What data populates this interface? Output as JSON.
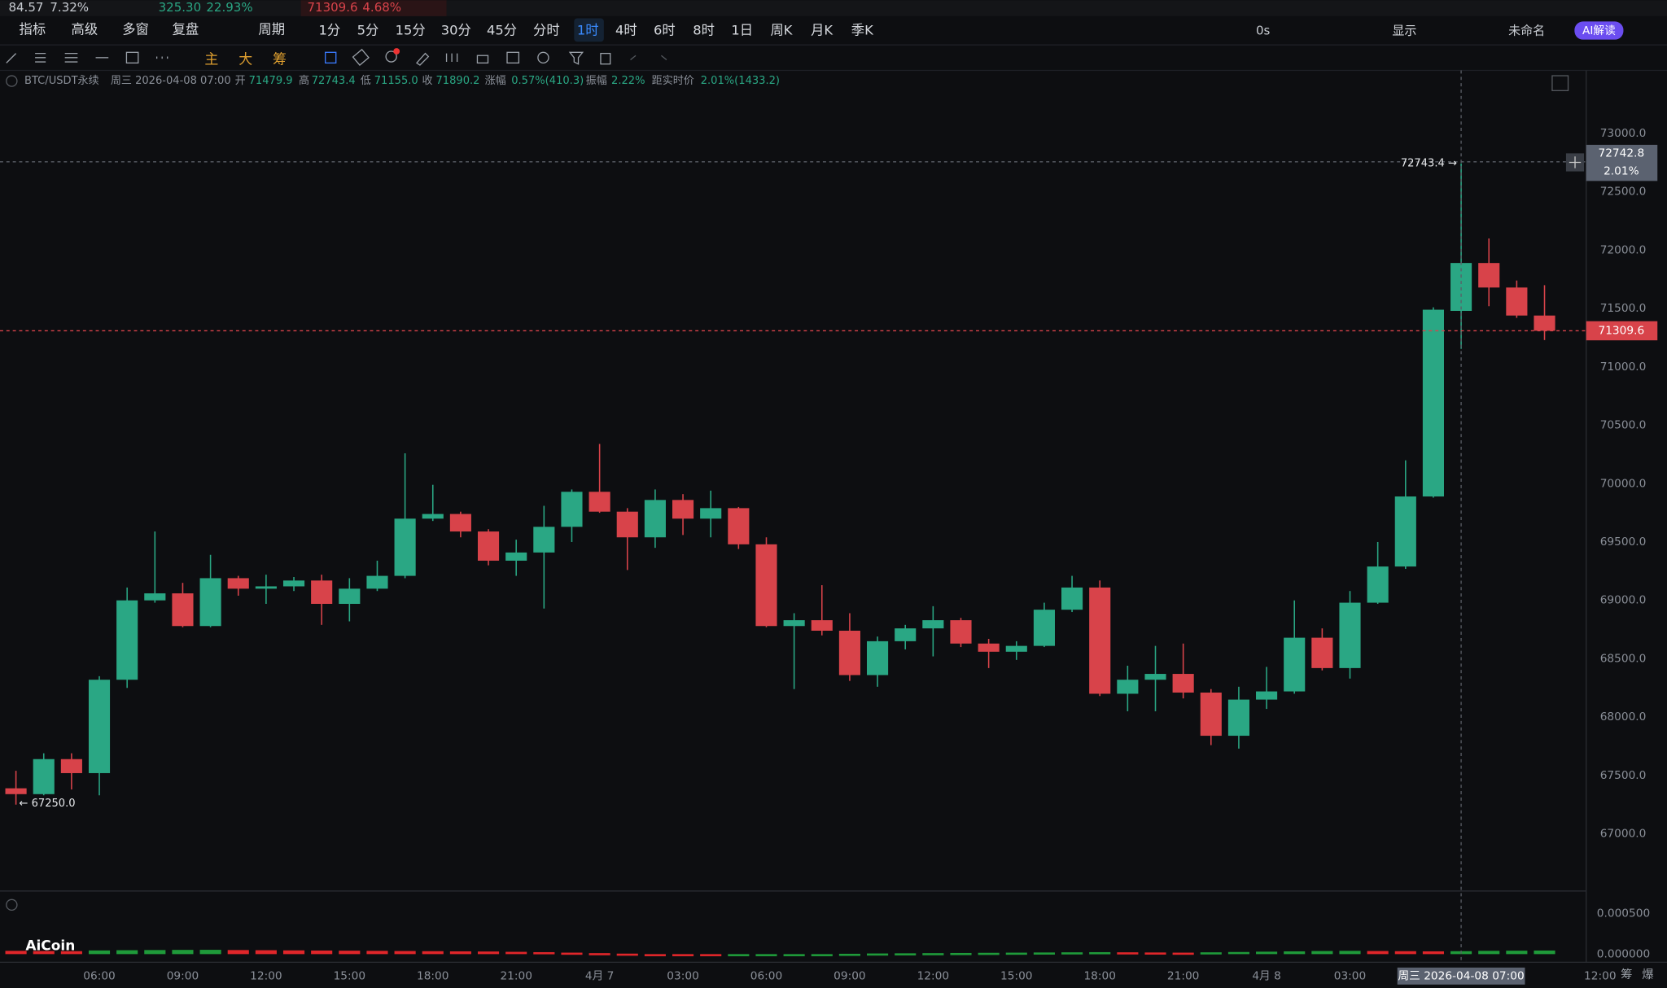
{
  "ui": {
    "tickers": [
      "84.57",
      "7.32%",
      "325.30",
      "22.93%",
      "71309.6",
      "4.68%"
    ],
    "toolbar_left": [
      "指标",
      "高级",
      "多窗",
      "复盘",
      "周期"
    ],
    "periods": [
      "1分",
      "5分",
      "15分",
      "30分",
      "45分",
      "分时",
      "1时",
      "4时",
      "6时",
      "8时",
      "1日",
      "周K",
      "月K",
      "季K"
    ],
    "active_period": "1时",
    "toolbar_right": [
      "0s",
      "显示",
      "未命名",
      "AI解读"
    ],
    "overlays": [
      "主",
      "大",
      "筹"
    ],
    "info": [
      "BTC/USDT永续",
      "周三 2026-04-08 07:00",
      "开",
      "71479.9",
      "高",
      "72743.4",
      "低",
      "71155.0",
      "收",
      "71890.2",
      "涨幅",
      "0.57%(410.3)",
      "振幅",
      "2.22%",
      "距实时价",
      "2.01%(1433.2)"
    ],
    "high_marker": "72743.4 →",
    "low_marker": "← 67250.0",
    "crosshair_price": "72742.8",
    "crosshair_pct": "2.01%",
    "crosshair_time": "周三 2026-04-08 07:00",
    "last_price": "71309.6",
    "logo": "AiCoin",
    "corner": [
      "筹",
      "爆"
    ]
  },
  "chart_data": {
    "type": "candlestick",
    "up_color": "#2aa784",
    "down_color": "#d8434a",
    "xlim": [
      -0.574,
      56.5
    ],
    "xticks": [
      {
        "value": 3,
        "label": "06:00"
      },
      {
        "value": 6,
        "label": "09:00"
      },
      {
        "value": 9,
        "label": "12:00"
      },
      {
        "value": 12,
        "label": "15:00"
      },
      {
        "value": 15,
        "label": "18:00"
      },
      {
        "value": 18,
        "label": "21:00"
      },
      {
        "value": 21,
        "label": "4月 7"
      },
      {
        "value": 24,
        "label": "03:00"
      },
      {
        "value": 27,
        "label": "06:00"
      },
      {
        "value": 30,
        "label": "09:00"
      },
      {
        "value": 33,
        "label": "12:00"
      },
      {
        "value": 36,
        "label": "15:00"
      },
      {
        "value": 39,
        "label": "18:00"
      },
      {
        "value": 42,
        "label": "21:00"
      },
      {
        "value": 45,
        "label": "4月 8"
      },
      {
        "value": 48,
        "label": "03:00"
      },
      {
        "value": 57,
        "label": "12:00"
      }
    ],
    "ylim": [
      66510,
      73540
    ],
    "yticks": [
      {
        "value": 67000,
        "label": "67000.0"
      },
      {
        "value": 67500,
        "label": "67500.0"
      },
      {
        "value": 68000,
        "label": "68000.0"
      },
      {
        "value": 68500,
        "label": "68500.0"
      },
      {
        "value": 69000,
        "label": "69000.0"
      },
      {
        "value": 69500,
        "label": "69500.0"
      },
      {
        "value": 70000,
        "label": "70000.0"
      },
      {
        "value": 70500,
        "label": "70500.0"
      },
      {
        "value": 71000,
        "label": "71000.0"
      },
      {
        "value": 71500,
        "label": "71500.0"
      },
      {
        "value": 72000,
        "label": "72000.0"
      },
      {
        "value": 72500,
        "label": "72500.0"
      },
      {
        "value": 73000,
        "label": "73000.0"
      }
    ],
    "grid": true,
    "open": [
      67390,
      67340,
      67640,
      67520,
      68320,
      69000,
      69060,
      68780,
      69190,
      69100,
      69120,
      69170,
      68970,
      69100,
      69210,
      69700,
      69740,
      69590,
      69340,
      69410,
      69630,
      69930,
      69760,
      69540,
      69860,
      69700,
      69790,
      69480,
      68780,
      68830,
      68740,
      68360,
      68650,
      68760,
      68830,
      68630,
      68560,
      68610,
      68920,
      69110,
      68200,
      68320,
      68370,
      68210,
      67840,
      68150,
      68220,
      68680,
      68420,
      68980,
      69290,
      69890,
      71479.9,
      71890,
      71680,
      71440
    ],
    "high": [
      67540,
      67690,
      67690,
      68350,
      69110,
      69590,
      69150,
      69390,
      69210,
      69220,
      69200,
      69220,
      69190,
      69340,
      70260,
      69990,
      69760,
      69610,
      69520,
      69810,
      69950,
      70340,
      69790,
      69950,
      69910,
      69940,
      69800,
      69540,
      68890,
      69130,
      68890,
      68690,
      68790,
      68950,
      68850,
      68670,
      68650,
      68980,
      69210,
      69170,
      68440,
      68610,
      68630,
      68240,
      68260,
      68430,
      69000,
      68760,
      69080,
      69500,
      70200,
      71510,
      72743.4,
      72100,
      71740,
      71700
    ],
    "low": [
      67250,
      67330,
      67380,
      67330,
      68250,
      68980,
      68770,
      68770,
      69040,
      68970,
      69080,
      68790,
      68820,
      69080,
      69190,
      69680,
      69540,
      69300,
      69210,
      68930,
      69500,
      69750,
      69260,
      69450,
      69560,
      69540,
      69440,
      68770,
      68240,
      68700,
      68310,
      68260,
      68580,
      68520,
      68600,
      68420,
      68490,
      68600,
      68900,
      68180,
      68050,
      68050,
      68160,
      67760,
      67730,
      68070,
      68200,
      68400,
      68330,
      68970,
      69270,
      69880,
      71155.0,
      71520,
      71420,
      71230
    ],
    "close": [
      67340,
      67640,
      67520,
      68320,
      69000,
      69060,
      68780,
      69190,
      69100,
      69120,
      69170,
      68970,
      69100,
      69210,
      69700,
      69740,
      69590,
      69340,
      69410,
      69630,
      69930,
      69760,
      69540,
      69860,
      69700,
      69790,
      69480,
      68780,
      68830,
      68740,
      68360,
      68650,
      68760,
      68830,
      68630,
      68560,
      68610,
      68920,
      69110,
      68200,
      68320,
      68370,
      68210,
      67840,
      68150,
      68220,
      68680,
      68420,
      68980,
      69290,
      69890,
      71490,
      71890.2,
      71680,
      71440,
      71309.6
    ],
    "indicator": {
      "ylim": [
        -0.0001,
        0.00075
      ],
      "yticks": [
        {
          "value": 0.0005,
          "label": "0.000500"
        },
        {
          "value": 0,
          "label": "0.000000"
        }
      ],
      "values": [
        4e-05,
        3.8e-05,
        3.6e-05,
        4.5e-05,
        4.8e-05,
        5e-05,
        5.2e-05,
        5.3e-05,
        5e-05,
        4.8e-05,
        4.6e-05,
        4.4e-05,
        4.2e-05,
        4e-05,
        3.8e-05,
        3.6e-05,
        3.4e-05,
        3.2e-05,
        2.8e-05,
        2.4e-05,
        1.8e-05,
        1.2e-05,
        6e-06,
        -8e-06,
        -1e-05,
        -1.2e-05,
        -1e-05,
        -8e-06,
        -6e-06,
        0,
        4e-06,
        8e-06,
        1e-05,
        1.2e-05,
        1.4e-05,
        1.6e-05,
        1.8e-05,
        2e-05,
        2.2e-05,
        2.4e-05,
        2.2e-05,
        2e-05,
        1.8e-05,
        2.2e-05,
        2.6e-05,
        3e-05,
        3.4e-05,
        3.8e-05,
        4e-05,
        3.8e-05,
        3.6e-05,
        3.4e-05,
        3.6e-05,
        4e-05,
        4.2e-05,
        4.4e-05
      ]
    }
  }
}
